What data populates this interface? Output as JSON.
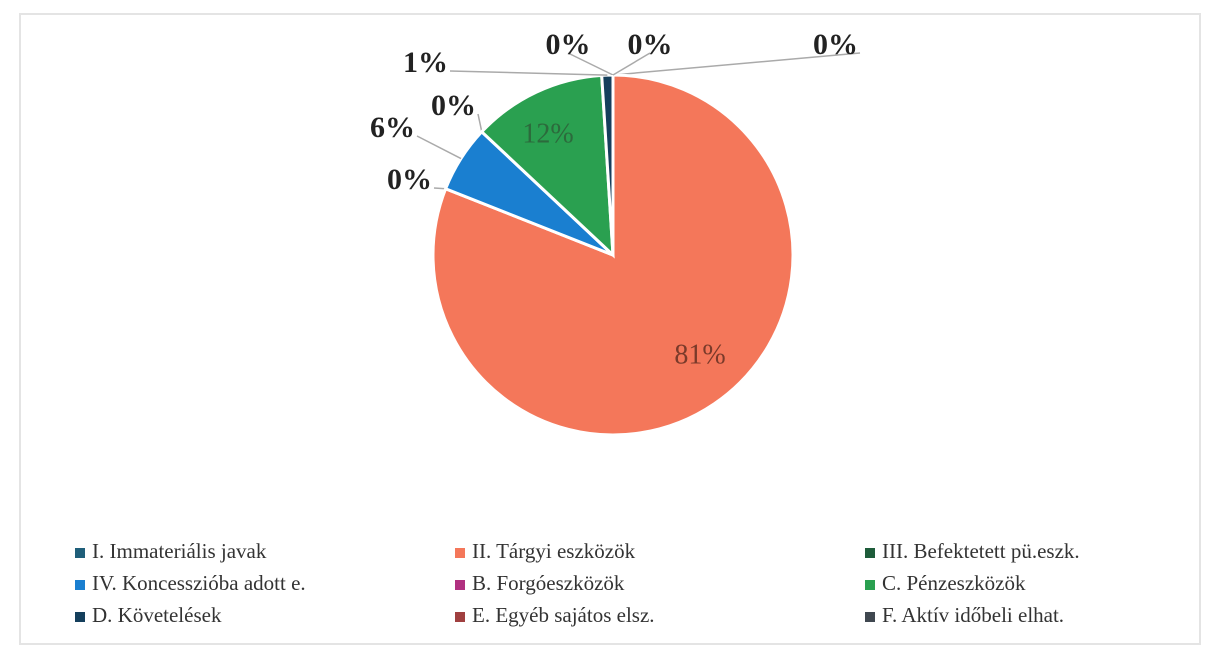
{
  "chart_data": {
    "type": "pie",
    "categories": [
      "I. Immateriális javak",
      "II. Tárgyi eszközök",
      "III. Befektetett pü.eszk.",
      "IV. Koncesszióba adott e.",
      "B. Forgóeszközök",
      "C. Pénzeszközök",
      "D. Követelések",
      "E. Egyéb sajátos elsz.",
      "F. Aktív időbeli elhat."
    ],
    "values": [
      0,
      81,
      0,
      6,
      0,
      12,
      1,
      0,
      0
    ],
    "value_labels": [
      "0%",
      "81%",
      "0%",
      "6%",
      "0%",
      "12%",
      "1%",
      "0%",
      "0%"
    ],
    "colors": [
      "#1f5f7a",
      "#f4775a",
      "#1e5c3a",
      "#1a7fd0",
      "#b03080",
      "#2aa050",
      "#153f5c",
      "#a04040",
      "#404850"
    ],
    "legend": "bottom"
  }
}
